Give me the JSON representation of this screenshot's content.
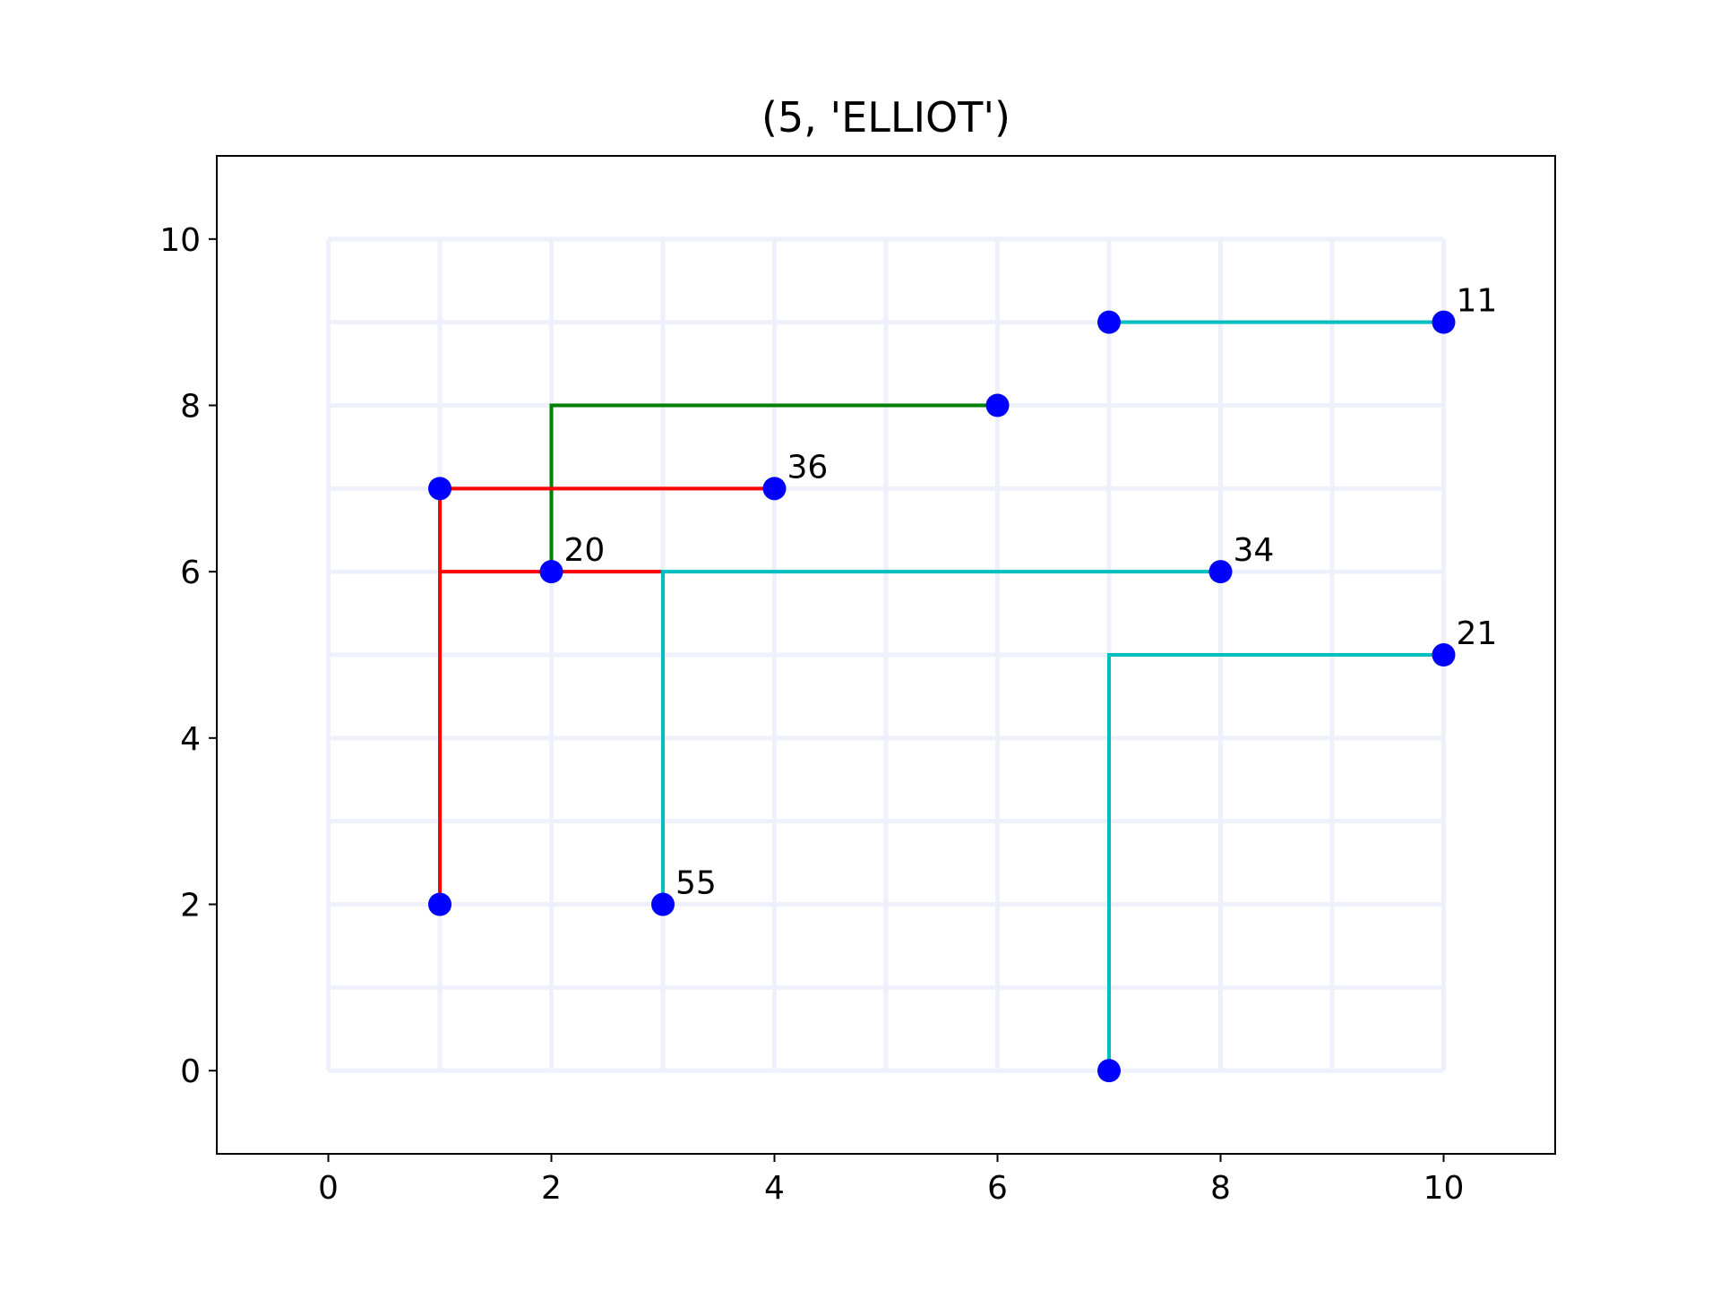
{
  "chart_data": {
    "type": "scatter",
    "title": "(5, 'ELLIOT')",
    "xlabel": "",
    "ylabel": "",
    "xlim": [
      -1,
      11
    ],
    "ylim": [
      -1,
      11
    ],
    "xticks": [
      0,
      2,
      4,
      6,
      8,
      10
    ],
    "yticks": [
      0,
      2,
      4,
      6,
      8,
      10
    ],
    "grid_color": "#eef0fc",
    "grid": {
      "x": [
        0,
        1,
        2,
        3,
        4,
        5,
        6,
        7,
        8,
        9,
        10
      ],
      "y": [
        0,
        1,
        2,
        3,
        4,
        5,
        6,
        7,
        8,
        9,
        10
      ]
    },
    "point_color": "#0000ff",
    "points": [
      {
        "x": 7,
        "y": 9
      },
      {
        "x": 10,
        "y": 9,
        "label": "11"
      },
      {
        "x": 6,
        "y": 8
      },
      {
        "x": 1,
        "y": 7
      },
      {
        "x": 4,
        "y": 7,
        "label": "36"
      },
      {
        "x": 2,
        "y": 6,
        "label": "20"
      },
      {
        "x": 8,
        "y": 6,
        "label": "34"
      },
      {
        "x": 10,
        "y": 5,
        "label": "21"
      },
      {
        "x": 1,
        "y": 2
      },
      {
        "x": 3,
        "y": 2,
        "label": "55"
      },
      {
        "x": 7,
        "y": 0
      }
    ],
    "paths": [
      {
        "color": "#00bfbf",
        "points": [
          [
            7,
            9
          ],
          [
            10,
            9
          ]
        ]
      },
      {
        "color": "#008000",
        "points": [
          [
            6,
            8
          ],
          [
            2,
            8
          ],
          [
            2,
            6
          ]
        ]
      },
      {
        "color": "#ff0000",
        "points": [
          [
            4,
            7
          ],
          [
            1,
            7
          ],
          [
            1,
            2
          ]
        ]
      },
      {
        "color": "#ff0000",
        "points": [
          [
            1,
            6
          ],
          [
            3,
            6
          ]
        ]
      },
      {
        "color": "#00bfbf",
        "points": [
          [
            8,
            6
          ],
          [
            3,
            6
          ],
          [
            3,
            2
          ]
        ]
      },
      {
        "color": "#00bfbf",
        "points": [
          [
            10,
            5
          ],
          [
            7,
            5
          ],
          [
            7,
            0
          ]
        ]
      }
    ]
  }
}
